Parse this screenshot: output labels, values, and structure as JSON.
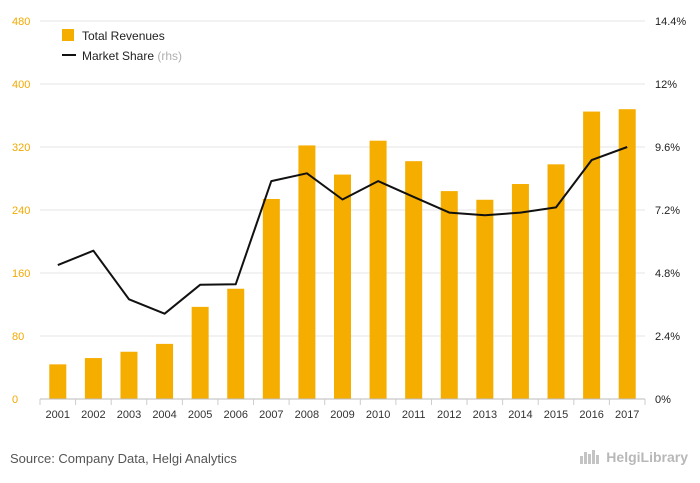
{
  "chart_data": {
    "type": "bar",
    "categories": [
      "2001",
      "2002",
      "2003",
      "2004",
      "2005",
      "2006",
      "2007",
      "2008",
      "2009",
      "2010",
      "2011",
      "2012",
      "2013",
      "2014",
      "2015",
      "2016",
      "2017"
    ],
    "series": [
      {
        "name": "Total Revenues",
        "type": "bar",
        "axis": "left",
        "color": "#f5ad00",
        "values": [
          44,
          52,
          60,
          70,
          117,
          140,
          254,
          322,
          285,
          328,
          302,
          264,
          253,
          273,
          298,
          365,
          368
        ]
      },
      {
        "name": "Market Share",
        "name_suffix": "(rhs)",
        "type": "line",
        "axis": "right",
        "color": "#111111",
        "values": [
          5.1,
          5.65,
          3.8,
          3.25,
          4.35,
          4.37,
          8.3,
          8.6,
          7.6,
          8.3,
          7.7,
          7.1,
          7.0,
          7.1,
          7.3,
          9.1,
          9.6
        ]
      }
    ],
    "ylim_left": [
      0,
      480
    ],
    "yticks_left": [
      "0",
      "80",
      "160",
      "240",
      "320",
      "400",
      "480"
    ],
    "ylim_right": [
      0,
      14.4
    ],
    "yticks_right": [
      "0%",
      "2.4%",
      "4.8%",
      "7.2%",
      "9.6%",
      "12%",
      "14.4%"
    ],
    "left_axis_color": "#f2a900",
    "grid": true,
    "legend_position": "top-left"
  },
  "footer": {
    "source": "Source: Company Data, Helgi Analytics",
    "logo_text": "HelgiLibrary"
  }
}
